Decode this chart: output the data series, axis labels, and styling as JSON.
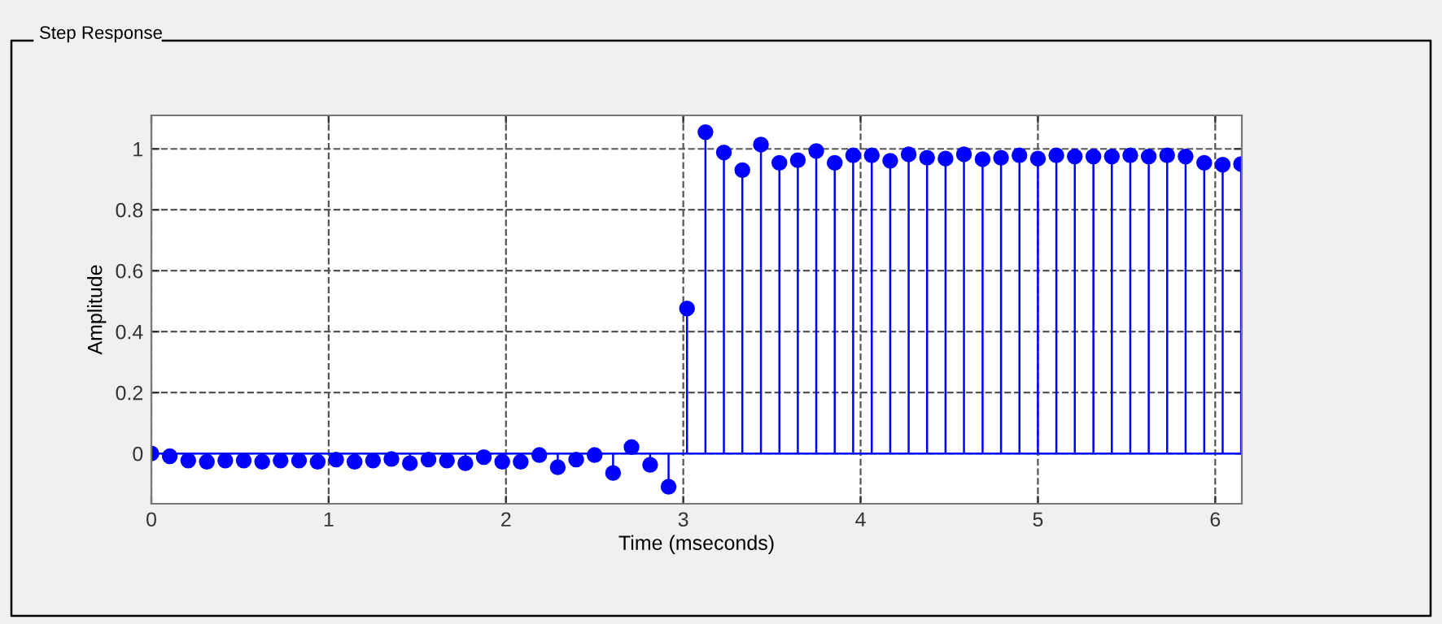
{
  "chart_data": {
    "type": "lollipop",
    "title": "Step Response",
    "xlabel": "Time (mseconds)",
    "ylabel": "Amplitude",
    "x": [
      0,
      0.104,
      0.208,
      0.313,
      0.417,
      0.521,
      0.625,
      0.729,
      0.833,
      0.938,
      1.042,
      1.146,
      1.25,
      1.354,
      1.458,
      1.563,
      1.667,
      1.771,
      1.875,
      1.979,
      2.083,
      2.188,
      2.292,
      2.396,
      2.5,
      2.604,
      2.708,
      2.813,
      2.917,
      3.021,
      3.125,
      3.229,
      3.333,
      3.438,
      3.542,
      3.646,
      3.75,
      3.854,
      3.958,
      4.063,
      4.167,
      4.271,
      4.375,
      4.479,
      4.583,
      4.688,
      4.792,
      4.896,
      5.0,
      5.104,
      5.208,
      5.313,
      5.417,
      5.521,
      5.625,
      5.729,
      5.833,
      5.938,
      6.042,
      6.146
    ],
    "series": [
      {
        "color": "#0000ff",
        "values": [
          0,
          -0.009,
          -0.023,
          -0.027,
          -0.023,
          -0.023,
          -0.027,
          -0.023,
          -0.023,
          -0.027,
          -0.02,
          -0.027,
          -0.023,
          -0.018,
          -0.032,
          -0.02,
          -0.023,
          -0.032,
          -0.012,
          -0.027,
          -0.027,
          -0.005,
          -0.045,
          -0.02,
          -0.005,
          -0.064,
          0.021,
          -0.037,
          -0.109,
          0.476,
          1.055,
          0.988,
          0.93,
          1.014,
          0.954,
          0.963,
          0.993,
          0.954,
          0.979,
          0.979,
          0.961,
          0.982,
          0.971,
          0.968,
          0.982,
          0.966,
          0.971,
          0.979,
          0.968,
          0.979,
          0.975,
          0.975,
          0.975,
          0.979,
          0.975,
          0.979,
          0.975,
          0.954,
          0.948,
          0.95
        ]
      }
    ],
    "xlim": [
      0,
      6.15
    ],
    "xticks": [
      0,
      1,
      2,
      3,
      4,
      5,
      6
    ],
    "ylim": [
      -0.165,
      1.11
    ],
    "yticks": [
      0,
      0.2,
      0.4,
      0.6,
      0.8,
      1
    ],
    "grid": true,
    "line_style": "dashed",
    "marker": "circle"
  }
}
